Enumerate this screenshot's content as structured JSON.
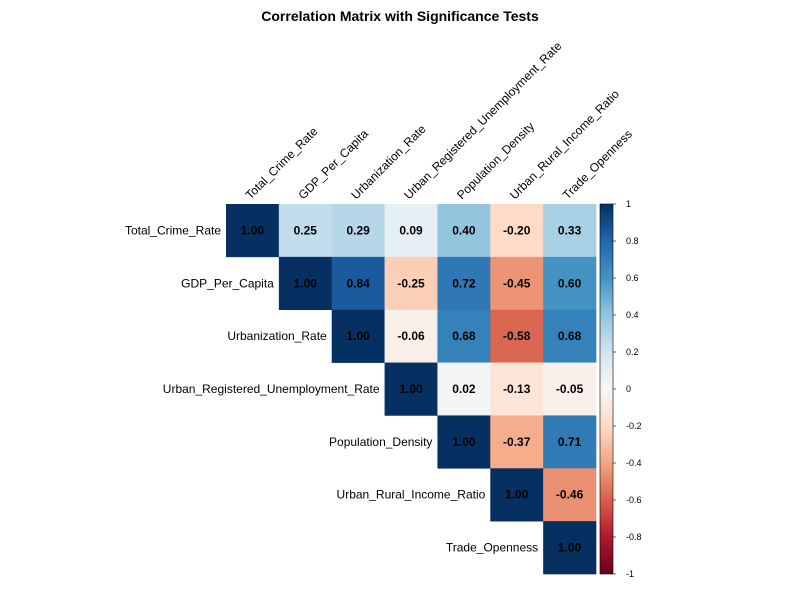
{
  "chart_data": {
    "type": "heatmap",
    "title": "Correlation Matrix with Significance Tests",
    "variables": [
      "Total_Crime_Rate",
      "GDP_Per_Capita",
      "Urbanization_Rate",
      "Urban_Registered_Unemployment_Rate",
      "Population_Density",
      "Urban_Rural_Income_Ratio",
      "Trade_Openness"
    ],
    "matrix_shape": "upper-triangular",
    "values": [
      [
        1.0,
        0.25,
        0.29,
        0.09,
        0.4,
        -0.2,
        0.33
      ],
      [
        null,
        1.0,
        0.84,
        -0.25,
        0.72,
        -0.45,
        0.6
      ],
      [
        null,
        null,
        1.0,
        -0.06,
        0.68,
        -0.58,
        0.68
      ],
      [
        null,
        null,
        null,
        1.0,
        0.02,
        -0.13,
        -0.05
      ],
      [
        null,
        null,
        null,
        null,
        1.0,
        -0.37,
        0.71
      ],
      [
        null,
        null,
        null,
        null,
        null,
        1.0,
        -0.46
      ],
      [
        null,
        null,
        null,
        null,
        null,
        null,
        1.0
      ]
    ],
    "labels": [
      [
        "1.00",
        "0.25",
        "0.29",
        "0.09",
        "0.40",
        "-0.20",
        "0.33"
      ],
      [
        "",
        "1.00",
        "0.84",
        "-0.25",
        "0.72",
        "-0.45",
        "0.60"
      ],
      [
        "",
        "",
        "1.00",
        "-0.06",
        "0.68",
        "-0.58",
        "0.68"
      ],
      [
        "",
        "",
        "",
        "1.00",
        "0.02",
        "-0.13",
        "-0.05"
      ],
      [
        "",
        "",
        "",
        "",
        "1.00",
        "-0.37",
        "0.71"
      ],
      [
        "",
        "",
        "",
        "",
        "",
        "1.00",
        "-0.46"
      ],
      [
        "",
        "",
        "",
        "",
        "",
        "",
        "1.00"
      ]
    ],
    "colorbar": {
      "range": [
        -1,
        1
      ],
      "ticks": [
        1,
        0.8,
        0.6,
        0.4,
        0.2,
        0,
        -0.2,
        -0.4,
        -0.6,
        -0.8,
        -1
      ],
      "tick_labels": [
        "1",
        "0.8",
        "0.6",
        "0.4",
        "0.2",
        "0",
        "-0.2",
        "-0.4",
        "-0.6",
        "-0.8",
        "-1"
      ]
    },
    "colorscale": [
      "#67001f",
      "#b2182b",
      "#d6604d",
      "#f4a582",
      "#fddbc7",
      "#f7f7f7",
      "#d1e5f0",
      "#92c5de",
      "#4393c3",
      "#2166ac",
      "#053061"
    ],
    "legend_position": "right",
    "grid": false
  }
}
